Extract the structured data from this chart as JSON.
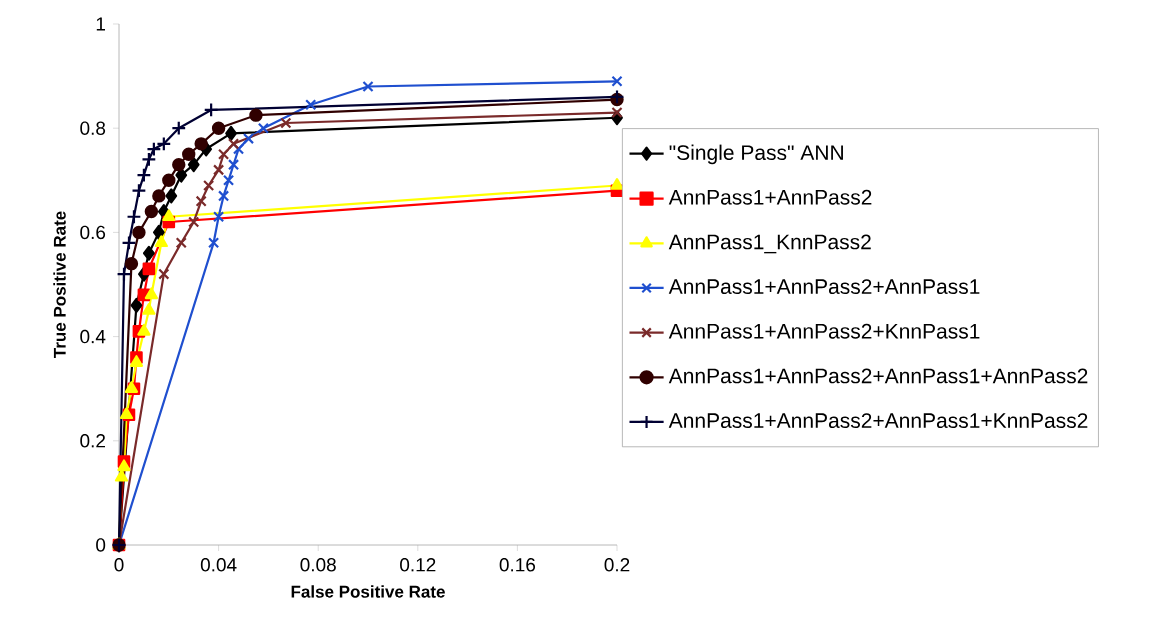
{
  "chart_data": {
    "type": "line",
    "xlabel": "False Positive Rate",
    "ylabel": "True Positive Rate",
    "xlim": [
      0,
      0.2
    ],
    "xticks": [
      0,
      0.04,
      0.08,
      0.12,
      0.16,
      0.2
    ],
    "ylim": [
      0,
      1
    ],
    "yticks": [
      0,
      0.2,
      0.4,
      0.6,
      0.8,
      1
    ],
    "grid": false,
    "legend": "right",
    "series": [
      {
        "name": "\"Single Pass\" ANN",
        "color": "#000000",
        "marker": "diamond",
        "x": [
          0,
          0.007,
          0.01,
          0.012,
          0.016,
          0.018,
          0.021,
          0.025,
          0.03,
          0.035,
          0.045,
          0.2
        ],
        "values": [
          0,
          0.46,
          0.52,
          0.56,
          0.6,
          0.64,
          0.67,
          0.71,
          0.73,
          0.76,
          0.79,
          0.82
        ]
      },
      {
        "name": "AnnPass1+AnnPass2",
        "color": "#ff0000",
        "marker": "square",
        "x": [
          0,
          0.002,
          0.004,
          0.006,
          0.007,
          0.008,
          0.01,
          0.012,
          0.02,
          0.2
        ],
        "values": [
          0,
          0.16,
          0.25,
          0.3,
          0.36,
          0.41,
          0.48,
          0.53,
          0.62,
          0.68
        ]
      },
      {
        "name": "AnnPass1_KnnPass2",
        "color": "#ffff00",
        "marker": "triangle",
        "x": [
          0,
          0.001,
          0.002,
          0.003,
          0.005,
          0.007,
          0.01,
          0.012,
          0.013,
          0.017,
          0.02,
          0.2
        ],
        "values": [
          0,
          0.13,
          0.15,
          0.25,
          0.3,
          0.35,
          0.41,
          0.45,
          0.48,
          0.58,
          0.63,
          0.69
        ]
      },
      {
        "name": "AnnPass1+AnnPass2+AnnPass1",
        "color": "#1f4fcf",
        "marker": "cross",
        "x": [
          0,
          0.038,
          0.04,
          0.042,
          0.044,
          0.046,
          0.048,
          0.052,
          0.058,
          0.077,
          0.1,
          0.2
        ],
        "values": [
          0,
          0.58,
          0.63,
          0.67,
          0.7,
          0.73,
          0.76,
          0.78,
          0.8,
          0.845,
          0.88,
          0.89
        ]
      },
      {
        "name": "AnnPass1+AnnPass2+KnnPass1",
        "color": "#7a2a2a",
        "marker": "cross",
        "x": [
          0,
          0.018,
          0.025,
          0.03,
          0.033,
          0.036,
          0.04,
          0.042,
          0.046,
          0.067,
          0.2
        ],
        "values": [
          0,
          0.52,
          0.58,
          0.62,
          0.66,
          0.69,
          0.72,
          0.75,
          0.77,
          0.81,
          0.83
        ]
      },
      {
        "name": "AnnPass1+AnnPass2+AnnPass1+AnnPass2",
        "color": "#300000",
        "marker": "circle",
        "x": [
          0,
          0.005,
          0.008,
          0.013,
          0.016,
          0.02,
          0.024,
          0.028,
          0.033,
          0.04,
          0.055,
          0.2
        ],
        "values": [
          0,
          0.54,
          0.6,
          0.64,
          0.67,
          0.7,
          0.73,
          0.75,
          0.77,
          0.8,
          0.825,
          0.855
        ]
      },
      {
        "name": "AnnPass1+AnnPass2+AnnPass1+KnnPass2",
        "color": "#000033",
        "marker": "plus",
        "x": [
          0,
          0.002,
          0.004,
          0.006,
          0.008,
          0.01,
          0.012,
          0.014,
          0.018,
          0.024,
          0.037,
          0.2
        ],
        "values": [
          0,
          0.52,
          0.58,
          0.63,
          0.68,
          0.71,
          0.74,
          0.76,
          0.77,
          0.8,
          0.835,
          0.86
        ]
      }
    ]
  }
}
